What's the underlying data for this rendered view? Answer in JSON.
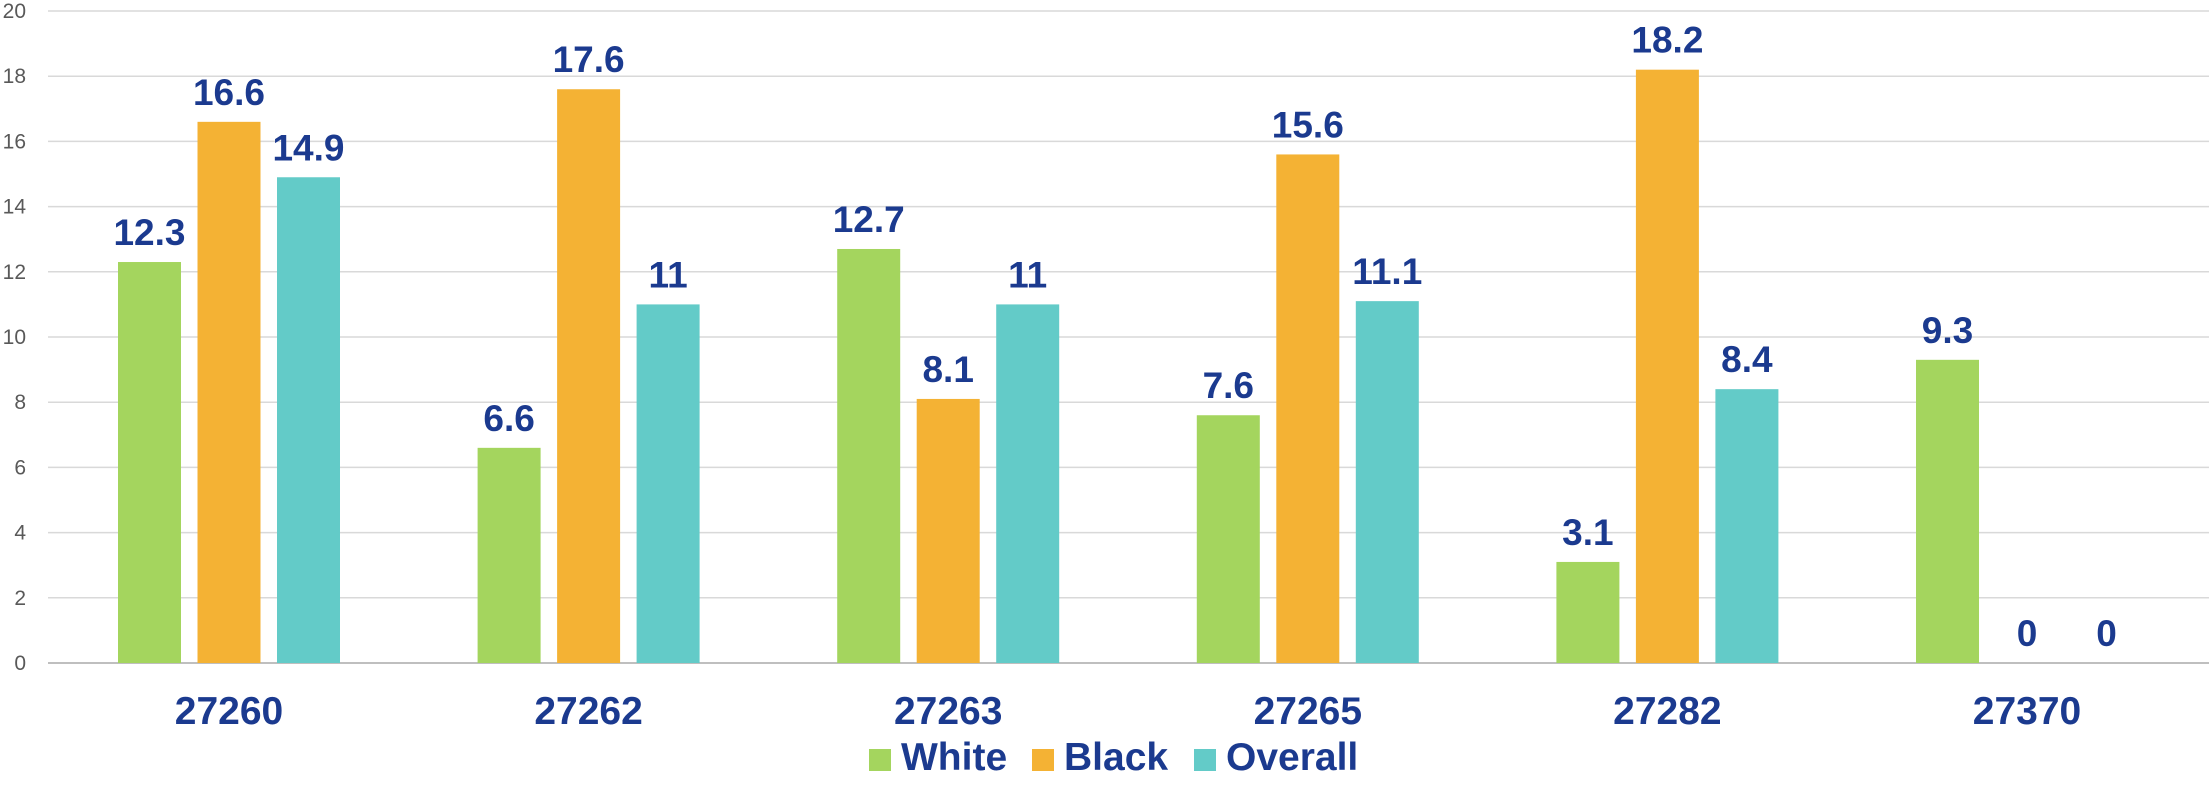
{
  "chart_data": {
    "type": "bar",
    "title": "",
    "xlabel": "",
    "ylabel": "",
    "ylim": [
      0,
      20
    ],
    "ytick_step": 2,
    "grid": true,
    "legend_position": "bottom",
    "categories": [
      "27260",
      "27262",
      "27263",
      "27265",
      "27282",
      "27370"
    ],
    "series": [
      {
        "name": "White",
        "color": "#a4d55e",
        "values": [
          12.3,
          6.6,
          12.7,
          7.6,
          3.1,
          9.3
        ],
        "labels": [
          "12.3",
          "6.6",
          "12.7",
          "7.6",
          "3.1",
          "9.3"
        ]
      },
      {
        "name": "Black",
        "color": "#f4b234",
        "values": [
          16.6,
          17.6,
          8.1,
          15.6,
          18.2,
          0
        ],
        "labels": [
          "16.6",
          "17.6",
          "8.1",
          "15.6",
          "18.2",
          "0"
        ]
      },
      {
        "name": "Overall",
        "color": "#63cbc8",
        "values": [
          14.9,
          11,
          11,
          11.1,
          8.4,
          0
        ],
        "labels": [
          "14.9",
          "11",
          "11",
          "11.1",
          "8.4",
          "0"
        ]
      }
    ]
  }
}
